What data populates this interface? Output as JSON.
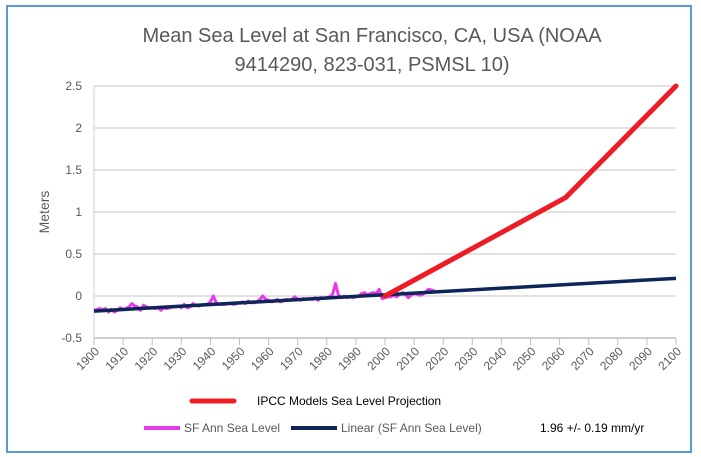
{
  "chart_data": {
    "type": "line",
    "title_lines": [
      "Mean Sea Level at San Francisco, CA, USA  (NOAA",
      "9414290, 823-031, PSMSL 10)"
    ],
    "xlabel": "",
    "ylabel": "Meters",
    "xlim": [
      1900,
      2100
    ],
    "ylim": [
      -0.5,
      2.5
    ],
    "xticks": [
      "1900",
      "1910",
      "1920",
      "1930",
      "1940",
      "1950",
      "1960",
      "1970",
      "1980",
      "1990",
      "2000",
      "2010",
      "2020",
      "2030",
      "2040",
      "2050",
      "2060",
      "2070",
      "2080",
      "2090",
      "2100"
    ],
    "yticks": [
      "2.5",
      "2",
      "1.5",
      "1",
      "0.5",
      "0",
      "-0.5"
    ],
    "grid": "horizontal",
    "legend_position": "bottom",
    "series": [
      {
        "name": "IPCC Models Sea Level Projection",
        "color": "#ee1c25",
        "x": [
          2000,
          2062,
          2100
        ],
        "y": [
          0.0,
          1.17,
          2.5
        ]
      },
      {
        "name": "SF Ann Sea Level",
        "color": "#e83be8",
        "x_start": 1900,
        "y": [
          -0.17,
          -0.16,
          -0.15,
          -0.16,
          -0.15,
          -0.19,
          -0.16,
          -0.19,
          -0.17,
          -0.14,
          -0.16,
          -0.15,
          -0.13,
          -0.09,
          -0.12,
          -0.13,
          -0.17,
          -0.11,
          -0.13,
          -0.14,
          -0.14,
          -0.15,
          -0.14,
          -0.17,
          -0.14,
          -0.15,
          -0.14,
          -0.13,
          -0.13,
          -0.12,
          -0.14,
          -0.1,
          -0.14,
          -0.13,
          -0.09,
          -0.11,
          -0.12,
          -0.11,
          -0.1,
          -0.1,
          -0.07,
          0.0,
          -0.08,
          -0.1,
          -0.1,
          -0.1,
          -0.09,
          -0.09,
          -0.1,
          -0.09,
          -0.08,
          -0.07,
          -0.09,
          -0.06,
          -0.08,
          -0.08,
          -0.07,
          -0.04,
          0.0,
          -0.04,
          -0.05,
          -0.07,
          -0.06,
          -0.04,
          -0.07,
          -0.06,
          -0.04,
          -0.05,
          -0.04,
          -0.01,
          -0.04,
          -0.05,
          -0.03,
          -0.04,
          -0.03,
          -0.04,
          -0.02,
          -0.05,
          -0.02,
          -0.03,
          -0.02,
          -0.01,
          0.02,
          0.15,
          0.01,
          -0.02,
          0.0,
          -0.02,
          -0.01,
          -0.02,
          -0.01,
          0.0,
          0.03,
          0.04,
          0.01,
          0.03,
          0.04,
          0.03,
          0.08,
          -0.03,
          -0.02,
          -0.01,
          -0.01,
          0.01,
          -0.01,
          0.02,
          0.04,
          0.02,
          -0.02,
          0.01,
          0.03,
          0.02,
          0.01,
          0.02,
          0.05,
          0.08,
          0.07,
          0.06
        ]
      },
      {
        "name": "Linear (SF Ann Sea Level)",
        "color": "#0d2559",
        "x": [
          1900,
          2100
        ],
        "y": [
          -0.18,
          0.21
        ]
      }
    ],
    "annotation": "1.96 +/- 0.19 mm/yr"
  }
}
